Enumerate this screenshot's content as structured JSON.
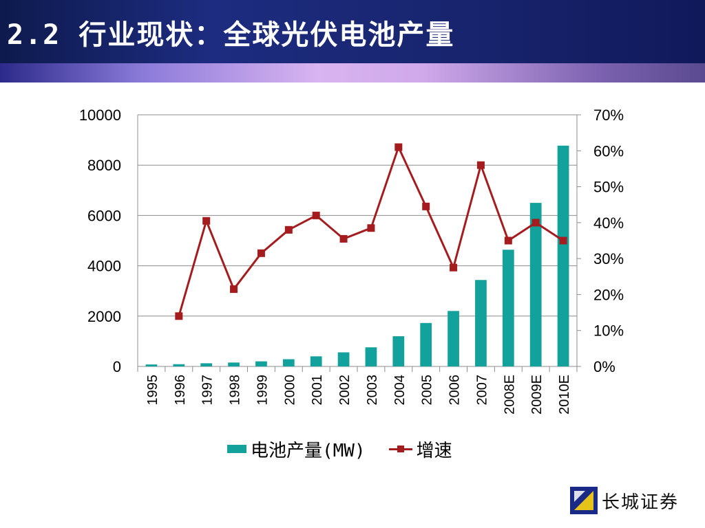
{
  "header": {
    "title": "2.2 行业现状：全球光伏电池产量"
  },
  "colors": {
    "bar": "#12a29b",
    "line": "#a51c1f",
    "header_bg": "#16226e"
  },
  "logo": {
    "icon": "great-wall-logo-icon",
    "text": "长城证券"
  },
  "chart_data": {
    "type": "bar",
    "categories": [
      "1995",
      "1996",
      "1997",
      "1998",
      "1999",
      "2000",
      "2001",
      "2002",
      "2003",
      "2004",
      "2005",
      "2006",
      "2007",
      "2008E",
      "2009E",
      "2010E"
    ],
    "series": [
      {
        "name": "电池产量(MW)",
        "type": "bar",
        "axis": "left",
        "values": [
          78,
          89,
          126,
          155,
          202,
          287,
          401,
          560,
          759,
          1200,
          1727,
          2204,
          3436,
          4638,
          6500,
          8775
        ]
      },
      {
        "name": "增速",
        "type": "line",
        "axis": "right",
        "values": [
          null,
          0.14,
          0.405,
          0.215,
          0.315,
          0.38,
          0.42,
          0.355,
          0.385,
          0.61,
          0.445,
          0.275,
          0.56,
          0.35,
          0.4,
          0.35
        ]
      }
    ],
    "y_left": {
      "min": 0,
      "max": 10000,
      "ticks": [
        "0",
        "2000",
        "4000",
        "6000",
        "8000",
        "10000"
      ]
    },
    "y_right": {
      "min": 0,
      "max": 0.7,
      "ticks": [
        "0%",
        "10%",
        "20%",
        "30%",
        "40%",
        "50%",
        "60%",
        "70%"
      ]
    },
    "grid": true,
    "legend_position": "bottom"
  }
}
